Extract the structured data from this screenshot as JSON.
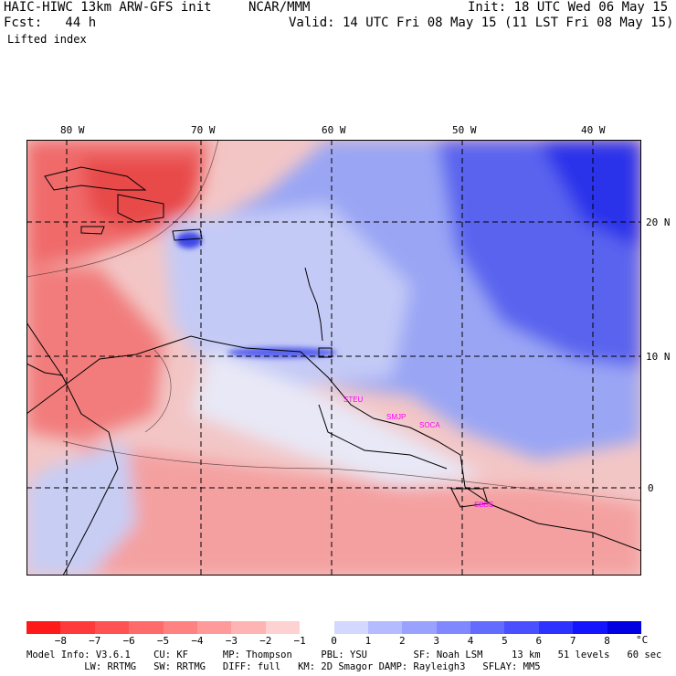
{
  "header": {
    "title": "HAIC-HIWC 13km ARW-GFS init",
    "org": "NCAR/MMM",
    "init": "Init: 18 UTC Wed 06 May 15",
    "forecast": "Fcst:   44 h",
    "valid": "Valid: 14 UTC Fri 08 May 15 (11 LST Fri 08 May 15)",
    "field": "Lifted index"
  },
  "axes": {
    "lon_labels": [
      "80 W",
      "70 W",
      "60 W",
      "50 W",
      "40 W"
    ],
    "lat_labels": [
      "20 N",
      "10 N",
      "0"
    ]
  },
  "stations": [
    "STEU",
    "SMJP",
    "SOCA",
    "SBBE"
  ],
  "colorbar": {
    "labels": [
      "−8",
      "−7",
      "−6",
      "−5",
      "−4",
      "−3",
      "−2",
      "−1",
      "0",
      "1",
      "2",
      "3",
      "4",
      "5",
      "6",
      "7",
      "8"
    ],
    "unit": "°C",
    "colors": [
      "#ff1a1a",
      "#ff3a3a",
      "#ff5252",
      "#ff6a6a",
      "#ff8282",
      "#ff9a9a",
      "#ffb4b4",
      "#ffd2d2",
      "#ffffff",
      "#d2d8ff",
      "#b4bcff",
      "#9aa2ff",
      "#8088ff",
      "#646cff",
      "#4a50ff",
      "#2e32ff",
      "#1414ff",
      "#0000e0"
    ]
  },
  "model_info": {
    "line1": "Model Info: V3.6.1    CU: KF      MP: Thompson     PBL: YSU        SF: Noah LSM     13 km   51 levels   60 sec",
    "line2": "          LW: RRTMG   SW: RRTMG   DIFF: full   KM: 2D Smagor DAMP: Rayleigh3   SFLAY: MM5"
  }
}
